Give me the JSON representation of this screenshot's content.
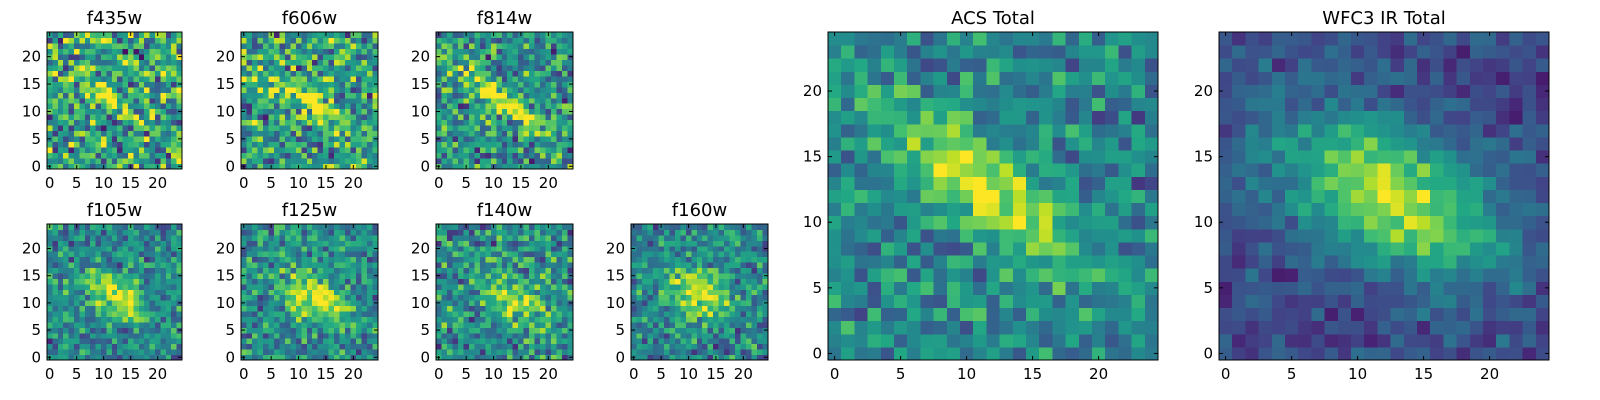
{
  "chart_data": [
    {
      "type": "heatmap",
      "title": "f435w",
      "xticks": [
        0,
        5,
        10,
        15,
        20
      ],
      "yticks": [
        0,
        5,
        10,
        15,
        20
      ],
      "xlim": [
        0,
        24
      ],
      "ylim": [
        0,
        24
      ],
      "grid": false,
      "colormap": "viridis",
      "seed": 11,
      "blob": {
        "cx": 12,
        "cy": 12,
        "sx": 4,
        "sy": 1.6,
        "angle": -35,
        "amp": 0.35
      },
      "noise": 0.55,
      "base": 0.58
    },
    {
      "type": "heatmap",
      "title": "f606w",
      "xticks": [
        0,
        5,
        10,
        15,
        20
      ],
      "yticks": [
        0,
        5,
        10,
        15,
        20
      ],
      "xlim": [
        0,
        24
      ],
      "ylim": [
        0,
        24
      ],
      "grid": false,
      "colormap": "viridis",
      "seed": 23,
      "blob": {
        "cx": 12,
        "cy": 12,
        "sx": 6,
        "sy": 1.4,
        "angle": -35,
        "amp": 0.45
      },
      "noise": 0.5,
      "base": 0.55
    },
    {
      "type": "heatmap",
      "title": "f814w",
      "xticks": [
        0,
        5,
        10,
        15,
        20
      ],
      "yticks": [
        0,
        5,
        10,
        15,
        20
      ],
      "xlim": [
        0,
        24
      ],
      "ylim": [
        0,
        24
      ],
      "grid": false,
      "colormap": "viridis",
      "seed": 37,
      "blob": {
        "cx": 12,
        "cy": 12,
        "sx": 6,
        "sy": 1.4,
        "angle": -38,
        "amp": 0.55
      },
      "noise": 0.45,
      "base": 0.5
    },
    {
      "type": "heatmap",
      "title": "f105w",
      "xticks": [
        0,
        5,
        10,
        15,
        20
      ],
      "yticks": [
        0,
        5,
        10,
        15,
        20
      ],
      "xlim": [
        0,
        24
      ],
      "ylim": [
        0,
        24
      ],
      "grid": false,
      "colormap": "viridis",
      "seed": 41,
      "blob": {
        "cx": 12,
        "cy": 11.5,
        "sx": 4.5,
        "sy": 2.5,
        "angle": -30,
        "amp": 0.5
      },
      "noise": 0.35,
      "base": 0.45
    },
    {
      "type": "heatmap",
      "title": "f125w",
      "xticks": [
        0,
        5,
        10,
        15,
        20
      ],
      "yticks": [
        0,
        5,
        10,
        15,
        20
      ],
      "xlim": [
        0,
        24
      ],
      "ylim": [
        0,
        24
      ],
      "grid": false,
      "colormap": "viridis",
      "seed": 53,
      "blob": {
        "cx": 13,
        "cy": 11,
        "sx": 4.5,
        "sy": 2.5,
        "angle": -30,
        "amp": 0.5
      },
      "noise": 0.35,
      "base": 0.48
    },
    {
      "type": "heatmap",
      "title": "f140w",
      "xticks": [
        0,
        5,
        10,
        15,
        20
      ],
      "yticks": [
        0,
        5,
        10,
        15,
        20
      ],
      "xlim": [
        0,
        24
      ],
      "ylim": [
        0,
        24
      ],
      "grid": false,
      "colormap": "viridis",
      "seed": 67,
      "blob": {
        "cx": 14,
        "cy": 11,
        "sx": 4,
        "sy": 2.5,
        "angle": -30,
        "amp": 0.45
      },
      "noise": 0.4,
      "base": 0.48
    },
    {
      "type": "heatmap",
      "title": "f160w",
      "xticks": [
        0,
        5,
        10,
        15,
        20
      ],
      "yticks": [
        0,
        5,
        10,
        15,
        20
      ],
      "xlim": [
        0,
        24
      ],
      "ylim": [
        0,
        24
      ],
      "grid": false,
      "colormap": "viridis",
      "seed": 79,
      "blob": {
        "cx": 12,
        "cy": 12,
        "sx": 4,
        "sy": 2.8,
        "angle": -25,
        "amp": 0.55
      },
      "noise": 0.35,
      "base": 0.45
    },
    {
      "type": "heatmap",
      "title": "ACS Total",
      "xticks": [
        0,
        5,
        10,
        15,
        20
      ],
      "yticks": [
        0,
        5,
        10,
        15,
        20
      ],
      "xlim": [
        0,
        24
      ],
      "ylim": [
        0,
        24
      ],
      "grid": false,
      "colormap": "viridis",
      "seed": 97,
      "blob": {
        "cx": 11.5,
        "cy": 12.5,
        "sx": 6.5,
        "sy": 2,
        "angle": -38,
        "amp": 0.55
      },
      "noise": 0.3,
      "base": 0.45
    },
    {
      "type": "heatmap",
      "title": "WFC3 IR Total",
      "xticks": [
        0,
        5,
        10,
        15,
        20
      ],
      "yticks": [
        0,
        5,
        10,
        15,
        20
      ],
      "xlim": [
        0,
        24
      ],
      "ylim": [
        0,
        24
      ],
      "grid": false,
      "colormap": "viridis",
      "seed": 113,
      "blob": {
        "cx": 12.5,
        "cy": 12,
        "sx": 6,
        "sy": 3.5,
        "angle": -28,
        "amp": 0.7
      },
      "noise": 0.18,
      "base": 0.22
    }
  ]
}
